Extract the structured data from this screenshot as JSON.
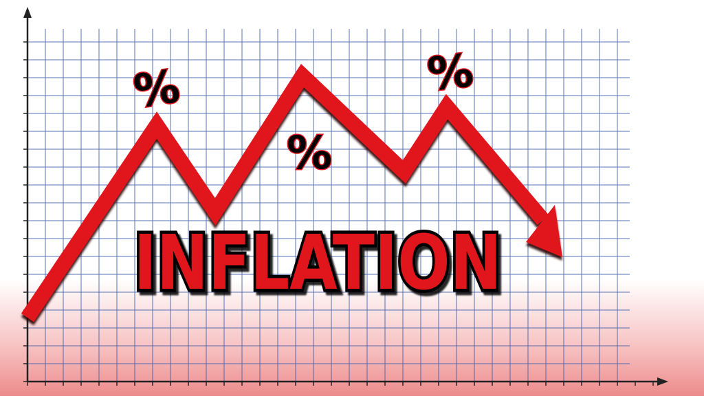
{
  "headline": "INFLATION",
  "percent_symbols": [
    "%",
    "%",
    "%"
  ],
  "colors": {
    "arrow": "#e0191f",
    "grid": "#3a5aa8",
    "axis": "#222222",
    "text_outline": "#000000",
    "bottom_glow": "#e86e6e"
  },
  "icons": {
    "trend_arrow": "zigzag-down-arrow-icon"
  }
}
